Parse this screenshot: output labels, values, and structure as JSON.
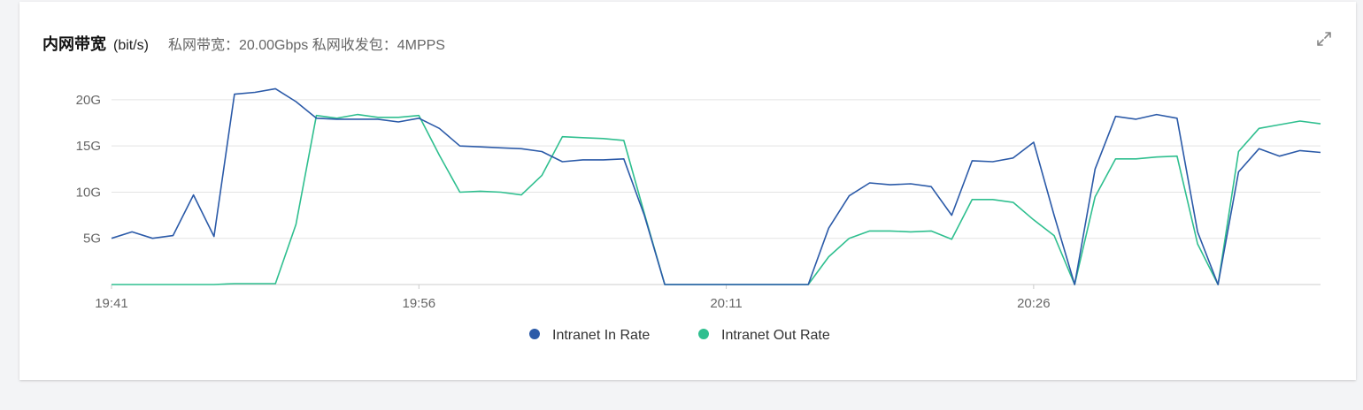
{
  "panel": {
    "title": "内网带宽",
    "unit": "(bit/s)",
    "subtitle": "私网带宽：20.00Gbps 私网收发包：4MPPS",
    "expand_icon": "expand-icon"
  },
  "colors": {
    "in": "#2b5aa8",
    "out": "#2fbf8f",
    "grid": "#e3e3e3",
    "axis": "#cccccc"
  },
  "chart_data": {
    "type": "line",
    "ylim": [
      0,
      22
    ],
    "y_unit": "G",
    "yticks": [
      {
        "v": 5,
        "label": "5G"
      },
      {
        "v": 10,
        "label": "10G"
      },
      {
        "v": 15,
        "label": "15G"
      },
      {
        "v": 20,
        "label": "20G"
      }
    ],
    "xlim": [
      0,
      59
    ],
    "xticks": [
      {
        "i": 0,
        "label": "19:41"
      },
      {
        "i": 15,
        "label": "19:56"
      },
      {
        "i": 30,
        "label": "20:11"
      },
      {
        "i": 45,
        "label": "20:26"
      }
    ],
    "legend": "bottom-center",
    "series": [
      {
        "name": "Intranet In Rate",
        "color_key": "in",
        "values": [
          5.0,
          5.7,
          5.0,
          5.3,
          9.7,
          5.2,
          20.6,
          20.8,
          21.2,
          19.8,
          18.0,
          17.9,
          17.9,
          17.9,
          17.6,
          18.0,
          16.9,
          15.0,
          14.9,
          14.8,
          14.7,
          14.4,
          13.3,
          13.5,
          13.5,
          13.6,
          7.5,
          0,
          0,
          0,
          0,
          0,
          0,
          0,
          0,
          6.1,
          9.6,
          11.0,
          10.8,
          10.9,
          10.6,
          7.5,
          13.4,
          13.3,
          13.7,
          15.4,
          7.5,
          0,
          12.5,
          18.2,
          17.9,
          18.4,
          18.0,
          5.7,
          0,
          12.2,
          14.7,
          13.9,
          14.5,
          14.3
        ]
      },
      {
        "name": "Intranet Out Rate",
        "color_key": "out",
        "values": [
          0,
          0,
          0,
          0,
          0,
          0,
          0.1,
          0.1,
          0.1,
          6.5,
          18.3,
          18.0,
          18.4,
          18.1,
          18.1,
          18.3,
          14.0,
          10.0,
          10.1,
          10.0,
          9.7,
          11.8,
          16.0,
          15.9,
          15.8,
          15.6,
          7.7,
          0,
          0,
          0,
          0,
          0,
          0,
          0,
          0,
          3.0,
          5.0,
          5.8,
          5.8,
          5.7,
          5.8,
          4.9,
          9.2,
          9.2,
          8.9,
          7.0,
          5.3,
          0,
          9.5,
          13.6,
          13.6,
          13.8,
          13.9,
          4.4,
          0,
          14.4,
          16.9,
          17.3,
          17.7,
          17.4
        ]
      }
    ]
  }
}
